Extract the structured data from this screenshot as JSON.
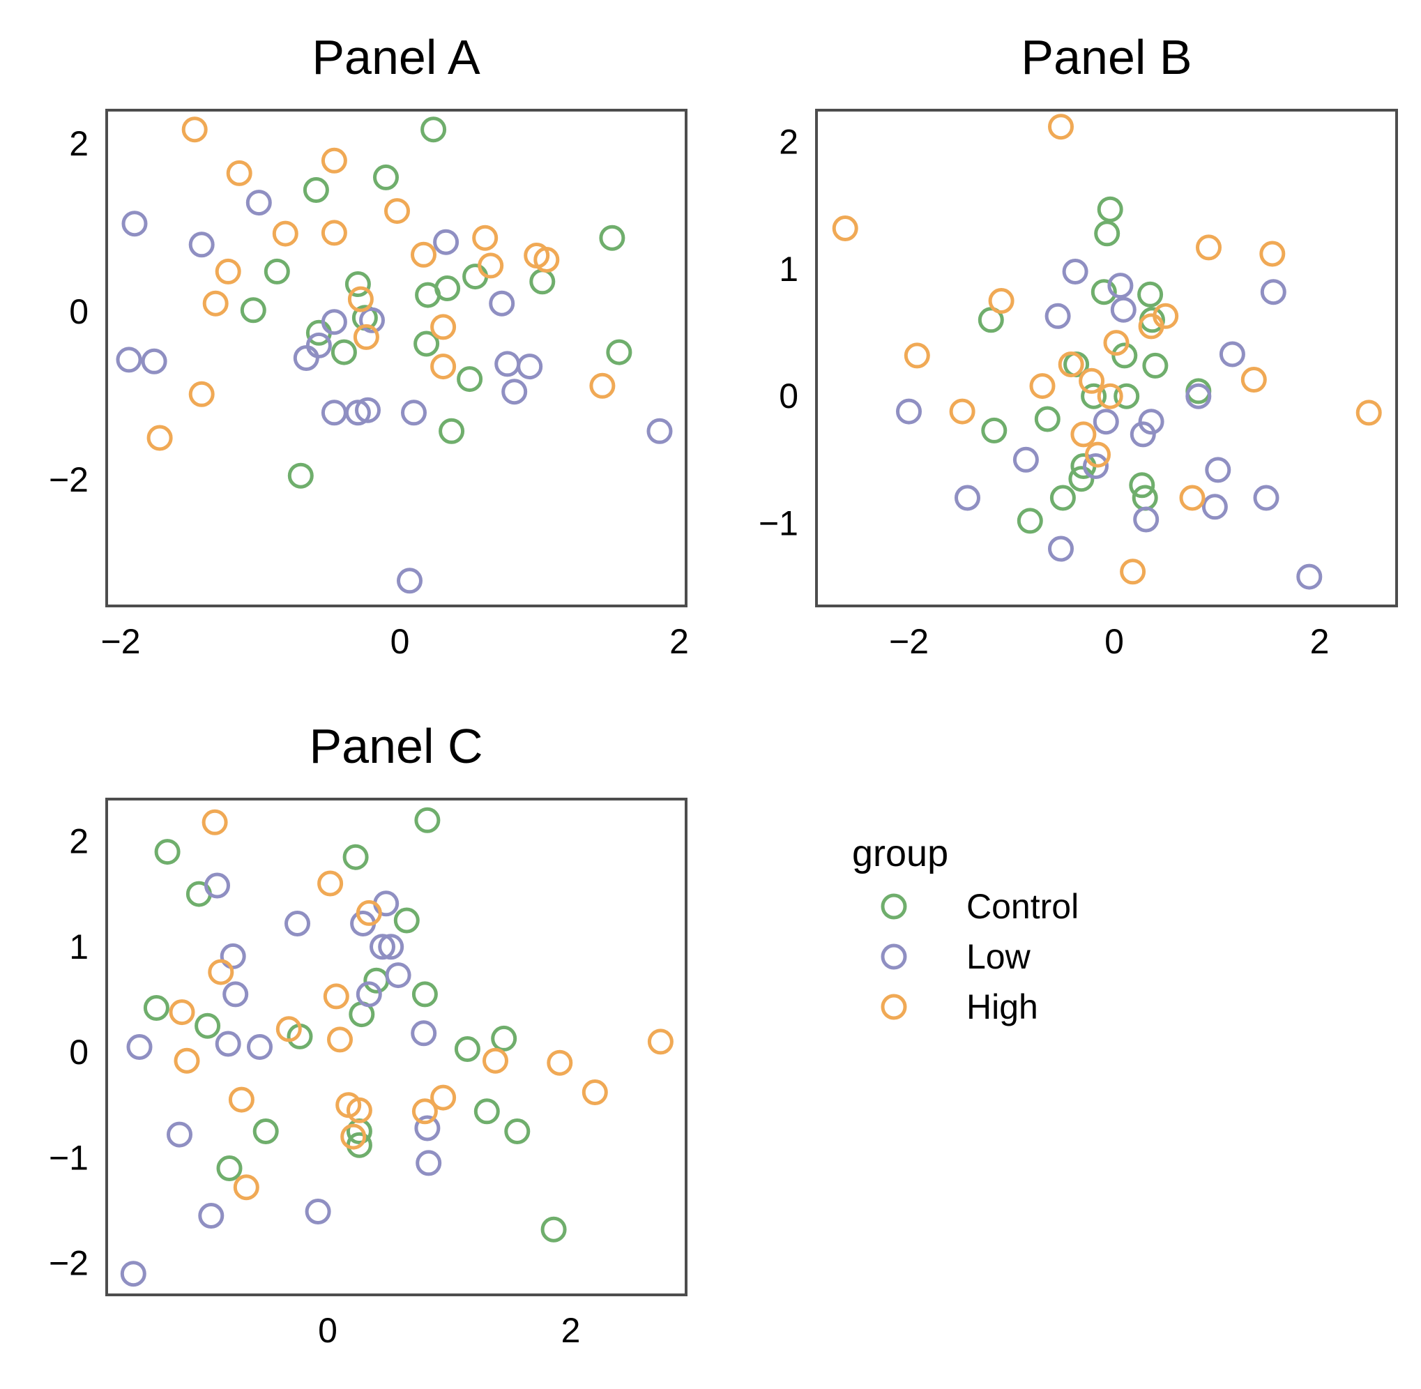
{
  "colors": {
    "Control": "#6fae6c",
    "Low": "#8f8fc2",
    "High": "#f0a955"
  },
  "legend": {
    "title": "group",
    "items": [
      {
        "label": "Control",
        "color": "#6fae6c"
      },
      {
        "label": "Low",
        "color": "#8f8fc2"
      },
      {
        "label": "High",
        "color": "#f0a955"
      }
    ]
  },
  "chart_data": [
    {
      "type": "scatter",
      "title": "Panel A",
      "xlim": [
        -2.1,
        2.05
      ],
      "ylim": [
        -3.5,
        2.4
      ],
      "xticks": [
        -2,
        0,
        2
      ],
      "yticks": [
        -2,
        0,
        2
      ],
      "xtick_labels": [
        "−2",
        "0",
        "2"
      ],
      "ytick_labels": [
        "−2",
        "0",
        "2"
      ],
      "series": [
        {
          "name": "Control",
          "points": [
            [
              0.24,
              2.17
            ],
            [
              -0.1,
              1.6
            ],
            [
              -0.6,
              1.45
            ],
            [
              -0.88,
              0.48
            ],
            [
              -1.05,
              0.02
            ],
            [
              -0.3,
              0.33
            ],
            [
              -0.25,
              -0.07
            ],
            [
              0.2,
              0.2
            ],
            [
              0.34,
              0.28
            ],
            [
              0.54,
              0.42
            ],
            [
              1.02,
              0.36
            ],
            [
              1.52,
              0.88
            ],
            [
              -0.58,
              -0.25
            ],
            [
              -0.4,
              -0.48
            ],
            [
              0.19,
              -0.38
            ],
            [
              0.5,
              -0.8
            ],
            [
              1.57,
              -0.48
            ],
            [
              0.37,
              -1.42
            ],
            [
              -0.71,
              -1.95
            ]
          ]
        },
        {
          "name": "Low",
          "points": [
            [
              -1.9,
              1.05
            ],
            [
              -1.42,
              0.8
            ],
            [
              -1.01,
              1.3
            ],
            [
              0.33,
              0.83
            ],
            [
              0.73,
              0.1
            ],
            [
              -0.47,
              -0.12
            ],
            [
              -0.2,
              -0.1
            ],
            [
              -0.58,
              -0.4
            ],
            [
              -0.67,
              -0.55
            ],
            [
              -1.94,
              -0.57
            ],
            [
              -1.76,
              -0.59
            ],
            [
              0.77,
              -0.62
            ],
            [
              0.93,
              -0.65
            ],
            [
              0.82,
              -0.95
            ],
            [
              -0.47,
              -1.2
            ],
            [
              -0.3,
              -1.2
            ],
            [
              -0.23,
              -1.17
            ],
            [
              0.1,
              -1.2
            ],
            [
              1.86,
              -1.42
            ],
            [
              0.07,
              -3.2
            ]
          ]
        },
        {
          "name": "High",
          "points": [
            [
              -1.47,
              2.17
            ],
            [
              -1.15,
              1.65
            ],
            [
              -0.47,
              1.8
            ],
            [
              -0.02,
              1.2
            ],
            [
              -0.82,
              0.93
            ],
            [
              -0.47,
              0.94
            ],
            [
              0.17,
              0.68
            ],
            [
              0.61,
              0.88
            ],
            [
              0.65,
              0.55
            ],
            [
              0.98,
              0.67
            ],
            [
              1.05,
              0.62
            ],
            [
              -1.23,
              0.48
            ],
            [
              -1.32,
              0.1
            ],
            [
              -0.28,
              0.15
            ],
            [
              0.31,
              -0.18
            ],
            [
              -0.24,
              -0.3
            ],
            [
              0.31,
              -0.65
            ],
            [
              -1.42,
              -0.98
            ],
            [
              1.45,
              -0.88
            ],
            [
              -1.72,
              -1.5
            ]
          ]
        }
      ]
    },
    {
      "type": "scatter",
      "title": "Panel B",
      "xlim": [
        -2.9,
        2.75
      ],
      "ylim": [
        -1.65,
        2.25
      ],
      "xticks": [
        -2,
        0,
        2
      ],
      "yticks": [
        -1,
        0,
        1,
        2
      ],
      "xtick_labels": [
        "−2",
        "0",
        "2"
      ],
      "ytick_labels": [
        "−1",
        "0",
        "1",
        "2"
      ],
      "series": [
        {
          "name": "Control",
          "points": [
            [
              -0.04,
              1.47
            ],
            [
              -0.07,
              1.28
            ],
            [
              -0.1,
              0.82
            ],
            [
              0.35,
              0.8
            ],
            [
              -1.2,
              0.6
            ],
            [
              0.37,
              0.6
            ],
            [
              0.1,
              0.32
            ],
            [
              -0.37,
              0.25
            ],
            [
              0.4,
              0.24
            ],
            [
              0.82,
              0.04
            ],
            [
              -0.2,
              0.0
            ],
            [
              0.12,
              0.0
            ],
            [
              -0.65,
              -0.18
            ],
            [
              -1.17,
              -0.27
            ],
            [
              -0.3,
              -0.55
            ],
            [
              -0.32,
              -0.65
            ],
            [
              0.27,
              -0.7
            ],
            [
              0.3,
              -0.8
            ],
            [
              -0.5,
              -0.8
            ],
            [
              -0.82,
              -0.98
            ]
          ]
        },
        {
          "name": "Low",
          "points": [
            [
              -0.38,
              0.98
            ],
            [
              0.06,
              0.87
            ],
            [
              0.09,
              0.68
            ],
            [
              -0.55,
              0.63
            ],
            [
              1.55,
              0.82
            ],
            [
              1.15,
              0.33
            ],
            [
              0.82,
              0.0
            ],
            [
              -2.0,
              -0.12
            ],
            [
              -0.08,
              -0.2
            ],
            [
              0.36,
              -0.2
            ],
            [
              0.28,
              -0.3
            ],
            [
              -0.86,
              -0.5
            ],
            [
              -0.18,
              -0.55
            ],
            [
              1.01,
              -0.58
            ],
            [
              -1.43,
              -0.8
            ],
            [
              1.48,
              -0.8
            ],
            [
              0.98,
              -0.87
            ],
            [
              0.31,
              -0.97
            ],
            [
              -0.52,
              -1.2
            ],
            [
              1.9,
              -1.42
            ]
          ]
        },
        {
          "name": "High",
          "points": [
            [
              -0.52,
              2.12
            ],
            [
              -2.62,
              1.32
            ],
            [
              0.92,
              1.17
            ],
            [
              1.54,
              1.12
            ],
            [
              -1.1,
              0.75
            ],
            [
              0.5,
              0.63
            ],
            [
              0.36,
              0.55
            ],
            [
              0.02,
              0.42
            ],
            [
              -1.92,
              0.32
            ],
            [
              -0.42,
              0.25
            ],
            [
              -0.22,
              0.12
            ],
            [
              1.36,
              0.13
            ],
            [
              -0.7,
              0.08
            ],
            [
              -0.04,
              0.0
            ],
            [
              -1.48,
              -0.12
            ],
            [
              2.48,
              -0.13
            ],
            [
              -0.3,
              -0.3
            ],
            [
              -0.16,
              -0.46
            ],
            [
              0.76,
              -0.8
            ],
            [
              0.18,
              -1.38
            ]
          ]
        }
      ]
    },
    {
      "type": "scatter",
      "title": "Panel C",
      "xlim": [
        -1.82,
        2.95
      ],
      "ylim": [
        -2.3,
        2.4
      ],
      "xticks": [
        0,
        2
      ],
      "yticks": [
        -2,
        -1,
        0,
        1,
        2
      ],
      "xtick_labels": [
        "0",
        "2"
      ],
      "ytick_labels": [
        "−2",
        "−1",
        "0",
        "1",
        "2"
      ],
      "series": [
        {
          "name": "Control",
          "points": [
            [
              0.82,
              2.2
            ],
            [
              -1.32,
              1.9
            ],
            [
              0.23,
              1.85
            ],
            [
              -1.06,
              1.5
            ],
            [
              0.65,
              1.25
            ],
            [
              0.4,
              0.68
            ],
            [
              0.8,
              0.55
            ],
            [
              0.28,
              0.36
            ],
            [
              -1.41,
              0.42
            ],
            [
              -0.99,
              0.25
            ],
            [
              -0.23,
              0.15
            ],
            [
              1.45,
              0.13
            ],
            [
              1.15,
              0.03
            ],
            [
              1.31,
              -0.56
            ],
            [
              -0.51,
              -0.75
            ],
            [
              0.26,
              -0.75
            ],
            [
              1.56,
              -0.75
            ],
            [
              0.26,
              -0.88
            ],
            [
              -0.81,
              -1.1
            ],
            [
              1.86,
              -1.68
            ]
          ]
        },
        {
          "name": "Low",
          "points": [
            [
              -0.91,
              1.58
            ],
            [
              -0.25,
              1.22
            ],
            [
              0.48,
              1.41
            ],
            [
              0.29,
              1.22
            ],
            [
              0.45,
              1.0
            ],
            [
              0.52,
              1.0
            ],
            [
              -0.78,
              0.91
            ],
            [
              0.58,
              0.73
            ],
            [
              -0.76,
              0.55
            ],
            [
              0.34,
              0.55
            ],
            [
              0.79,
              0.18
            ],
            [
              -1.55,
              0.05
            ],
            [
              -0.82,
              0.08
            ],
            [
              -0.56,
              0.05
            ],
            [
              0.82,
              -0.72
            ],
            [
              -1.22,
              -0.78
            ],
            [
              0.83,
              -1.05
            ],
            [
              -0.96,
              -1.55
            ],
            [
              -0.08,
              -1.51
            ],
            [
              -1.6,
              -2.1
            ]
          ]
        },
        {
          "name": "High",
          "points": [
            [
              -0.93,
              2.18
            ],
            [
              0.02,
              1.6
            ],
            [
              0.34,
              1.32
            ],
            [
              -0.88,
              0.76
            ],
            [
              0.07,
              0.53
            ],
            [
              -1.2,
              0.38
            ],
            [
              -0.32,
              0.22
            ],
            [
              0.1,
              0.12
            ],
            [
              -1.16,
              -0.08
            ],
            [
              1.38,
              -0.08
            ],
            [
              1.91,
              -0.1
            ],
            [
              2.74,
              0.1
            ],
            [
              2.2,
              -0.38
            ],
            [
              -0.71,
              -0.45
            ],
            [
              0.95,
              -0.43
            ],
            [
              0.17,
              -0.5
            ],
            [
              0.26,
              -0.55
            ],
            [
              0.8,
              -0.56
            ],
            [
              0.21,
              -0.8
            ],
            [
              -0.67,
              -1.28
            ]
          ]
        }
      ]
    }
  ]
}
